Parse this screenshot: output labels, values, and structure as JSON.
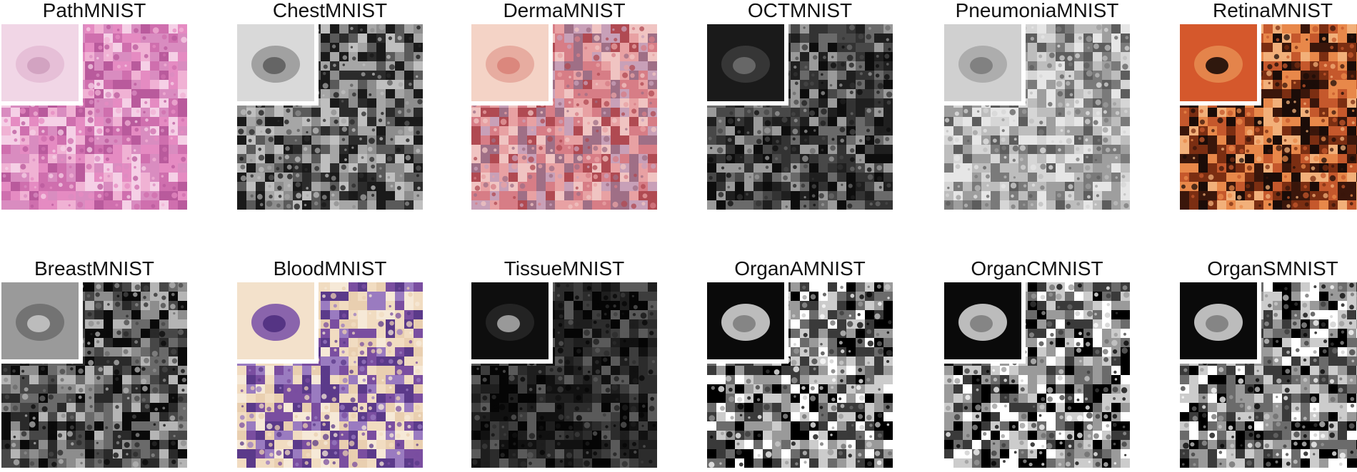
{
  "datasets": [
    {
      "name": "PathMNIST",
      "palette": [
        "#e58bc2",
        "#cf6fae",
        "#f0b2d4",
        "#b95a9c",
        "#d98cc0",
        "#f5d0e6"
      ],
      "inset": [
        "#f1d6e6",
        "#e4bcd5",
        "#cfa0bf"
      ]
    },
    {
      "name": "ChestMNIST",
      "palette": [
        "#2b2b2b",
        "#5a5a5a",
        "#8d8d8d",
        "#bfbfbf",
        "#1a1a1a",
        "#a6a6a6"
      ],
      "inset": [
        "#d9d9d9",
        "#9a9a9a",
        "#5e5e5e"
      ]
    },
    {
      "name": "DermaMNIST",
      "palette": [
        "#e8a1a3",
        "#d77d86",
        "#b04a52",
        "#f0c4c2",
        "#c8a0b8",
        "#9f6f86"
      ],
      "inset": [
        "#f4d3c6",
        "#e6a79b",
        "#d98379"
      ]
    },
    {
      "name": "OCTMNIST",
      "palette": [
        "#0d0d0d",
        "#1f1f1f",
        "#333333",
        "#484848",
        "#6a6a6a",
        "#9a9a9a"
      ],
      "inset": [
        "#1a1a1a",
        "#3a3a3a",
        "#6d6d6d"
      ]
    },
    {
      "name": "PneumoniaMNIST",
      "palette": [
        "#bdbdbd",
        "#9e9e9e",
        "#7a7a7a",
        "#d6d6d6",
        "#5d5d5d",
        "#e6e6e6"
      ],
      "inset": [
        "#d0d0d0",
        "#a8a8a8",
        "#7c7c7c"
      ]
    },
    {
      "name": "RetinaMNIST",
      "palette": [
        "#1b0c08",
        "#3a160b",
        "#7b2e12",
        "#c5582c",
        "#e8884a",
        "#f2b07a"
      ],
      "inset": [
        "#d5582c",
        "#e58a4f",
        "#1b0c08"
      ]
    },
    {
      "name": "BreastMNIST",
      "palette": [
        "#0a0a0a",
        "#2a2a2a",
        "#474747",
        "#6a6a6a",
        "#8d8d8d",
        "#b5b5b5"
      ],
      "inset": [
        "#9a9a9a",
        "#6f6f6f",
        "#c4c4c4"
      ]
    },
    {
      "name": "BloodMNIST",
      "palette": [
        "#f1dcc1",
        "#e9cfb0",
        "#7a4ea0",
        "#5b3a8a",
        "#9a7bc0",
        "#f6e9d7"
      ],
      "inset": [
        "#f3e1cb",
        "#7e56a8",
        "#4f2f7f"
      ]
    },
    {
      "name": "TissueMNIST",
      "palette": [
        "#050505",
        "#111111",
        "#1e1e1e",
        "#2c2c2c",
        "#3d3d3d",
        "#5a5a5a"
      ],
      "inset": [
        "#0e0e0e",
        "#262626",
        "#a6a6a6"
      ]
    },
    {
      "name": "OrganAMNIST",
      "palette": [
        "#000000",
        "#3a3a3a",
        "#6b6b6b",
        "#9a9a9a",
        "#cccccc",
        "#ffffff"
      ],
      "inset": [
        "#0a0a0a",
        "#cfcfcf",
        "#7e7e7e"
      ]
    },
    {
      "name": "OrganCMNIST",
      "palette": [
        "#000000",
        "#3a3a3a",
        "#6b6b6b",
        "#9a9a9a",
        "#cccccc",
        "#ffffff"
      ],
      "inset": [
        "#0a0a0a",
        "#cfcfcf",
        "#7e7e7e"
      ]
    },
    {
      "name": "OrganSMNIST",
      "palette": [
        "#000000",
        "#3a3a3a",
        "#6b6b6b",
        "#9a9a9a",
        "#cccccc",
        "#ffffff"
      ],
      "inset": [
        "#0a0a0a",
        "#cfcfcf",
        "#7e7e7e"
      ]
    }
  ]
}
